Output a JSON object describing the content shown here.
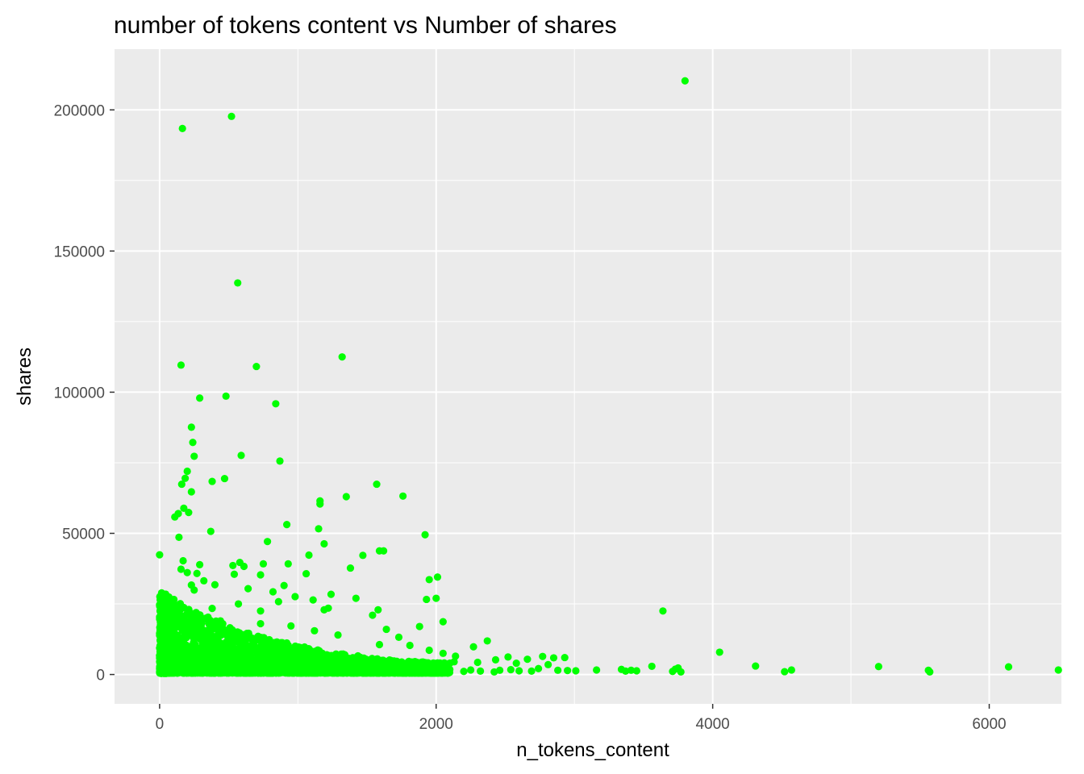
{
  "colors": {
    "panel_background": "#EBEBEB",
    "grid_major": "#FFFFFF",
    "point": "#00FF00",
    "tick_text": "#4D4D4D",
    "tick_mark": "#333333"
  },
  "chart_data": {
    "type": "scatter",
    "title": "number of tokens content vs Number of shares",
    "xlabel": "n_tokens_content",
    "ylabel": "shares",
    "xlim": [
      -326,
      6522
    ],
    "ylim": [
      -10400,
      221500
    ],
    "x_ticks": [
      0,
      2000,
      4000,
      6000
    ],
    "y_ticks": [
      0,
      50000,
      100000,
      150000,
      200000
    ],
    "x_tick_labels": [
      "0",
      "2000",
      "4000",
      "6000"
    ],
    "y_tick_labels": [
      "0",
      "50000",
      "100000",
      "150000",
      "200000"
    ],
    "grid": true,
    "legend": "none",
    "series": [
      {
        "points": [
          [
            3800,
            210300
          ],
          [
            520,
            197700
          ],
          [
            165,
            193400
          ],
          [
            565,
            138700
          ],
          [
            1320,
            112500
          ],
          [
            155,
            109600
          ],
          [
            700,
            109100
          ],
          [
            480,
            98600
          ],
          [
            290,
            97900
          ],
          [
            840,
            95900
          ],
          [
            230,
            87600
          ],
          [
            240,
            82200
          ],
          [
            250,
            77300
          ],
          [
            590,
            77600
          ],
          [
            870,
            75600
          ],
          [
            200,
            72000
          ],
          [
            185,
            69500
          ],
          [
            470,
            69400
          ],
          [
            380,
            68400
          ],
          [
            160,
            67400
          ],
          [
            1570,
            67400
          ],
          [
            230,
            64700
          ],
          [
            1350,
            63000
          ],
          [
            1760,
            63200
          ],
          [
            1160,
            61500
          ],
          [
            1160,
            60400
          ],
          [
            175,
            58900
          ],
          [
            210,
            57400
          ],
          [
            135,
            57000
          ],
          [
            110,
            55800
          ],
          [
            920,
            53100
          ],
          [
            1150,
            51600
          ],
          [
            1920,
            49500
          ],
          [
            370,
            50700
          ],
          [
            140,
            48600
          ],
          [
            780,
            47100
          ],
          [
            1190,
            46300
          ],
          [
            1590,
            43800
          ],
          [
            1620,
            43800
          ],
          [
            0,
            42400
          ],
          [
            1470,
            42200
          ],
          [
            1080,
            42300
          ],
          [
            170,
            40300
          ],
          [
            580,
            39700
          ],
          [
            930,
            39200
          ],
          [
            530,
            38600
          ],
          [
            290,
            38900
          ],
          [
            610,
            38300
          ],
          [
            750,
            39200
          ],
          [
            1380,
            37700
          ],
          [
            155,
            37300
          ],
          [
            270,
            35800
          ],
          [
            200,
            36100
          ],
          [
            540,
            35500
          ],
          [
            730,
            35300
          ],
          [
            1060,
            35700
          ],
          [
            2010,
            34500
          ],
          [
            1950,
            33600
          ],
          [
            900,
            31500
          ],
          [
            320,
            33200
          ],
          [
            400,
            31800
          ],
          [
            230,
            31700
          ],
          [
            250,
            29900
          ],
          [
            640,
            30400
          ],
          [
            820,
            29300
          ],
          [
            1240,
            28400
          ],
          [
            1420,
            27000
          ],
          [
            1930,
            26600
          ],
          [
            2000,
            27000
          ],
          [
            1110,
            26400
          ],
          [
            860,
            25800
          ],
          [
            980,
            27600
          ],
          [
            570,
            25000
          ],
          [
            160,
            23900
          ],
          [
            380,
            23400
          ],
          [
            1190,
            22900
          ],
          [
            1580,
            22900
          ],
          [
            3640,
            22500
          ],
          [
            1220,
            23500
          ],
          [
            730,
            22500
          ],
          [
            1540,
            21000
          ],
          [
            2050,
            18700
          ],
          [
            1880,
            17000
          ],
          [
            1640,
            16000
          ],
          [
            1120,
            15500
          ],
          [
            950,
            17200
          ],
          [
            730,
            18000
          ],
          [
            440,
            19000
          ],
          [
            240,
            21500
          ],
          [
            300,
            17000
          ],
          [
            1290,
            14000
          ],
          [
            1730,
            13200
          ],
          [
            2370,
            11900
          ],
          [
            1810,
            10300
          ],
          [
            2270,
            9800
          ],
          [
            1590,
            10600
          ],
          [
            1950,
            8600
          ],
          [
            2050,
            7500
          ],
          [
            4050,
            7900
          ],
          [
            2520,
            6200
          ],
          [
            2140,
            6500
          ],
          [
            2770,
            6400
          ],
          [
            2850,
            5900
          ],
          [
            2930,
            6000
          ],
          [
            2660,
            5400
          ],
          [
            2430,
            5200
          ],
          [
            2300,
            4300
          ],
          [
            2580,
            4000
          ],
          [
            2130,
            4500
          ],
          [
            2810,
            3500
          ],
          [
            3750,
            2300
          ],
          [
            3730,
            1900
          ],
          [
            4310,
            3000
          ],
          [
            5200,
            2800
          ],
          [
            6140,
            2700
          ],
          [
            3560,
            2900
          ],
          [
            3340,
            1800
          ],
          [
            3410,
            1500
          ],
          [
            3160,
            1600
          ],
          [
            3010,
            1300
          ],
          [
            2950,
            1400
          ],
          [
            3370,
            1200
          ],
          [
            3450,
            1300
          ],
          [
            3710,
            1100
          ],
          [
            3770,
            900
          ],
          [
            4520,
            1000
          ],
          [
            4570,
            1600
          ],
          [
            5560,
            1500
          ],
          [
            5570,
            900
          ],
          [
            6500,
            1600
          ],
          [
            2740,
            2100
          ],
          [
            2540,
            1700
          ],
          [
            2880,
            1500
          ],
          [
            2690,
            1200
          ],
          [
            2600,
            1300
          ],
          [
            2420,
            900
          ],
          [
            2460,
            1500
          ],
          [
            2320,
            1200
          ],
          [
            2200,
            1100
          ],
          [
            2250,
            1600
          ]
        ]
      }
    ]
  }
}
